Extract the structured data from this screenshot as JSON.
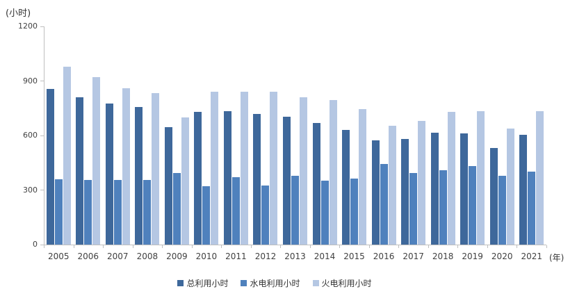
{
  "chart_data": {
    "type": "bar",
    "title": "",
    "ylabel": "(小时)",
    "xlabel": "(年)",
    "ylim": [
      0,
      1200
    ],
    "yticks": [
      0,
      300,
      600,
      900,
      1200
    ],
    "grid": false,
    "legend_position": "bottom",
    "axis_color": "#bfbfbf",
    "text_color": "#404040",
    "categories": [
      "2005",
      "2006",
      "2007",
      "2008",
      "2009",
      "2010",
      "2011",
      "2012",
      "2013",
      "2014",
      "2015",
      "2016",
      "2017",
      "2018",
      "2019",
      "2020",
      "2021"
    ],
    "series": [
      {
        "id": "total-hours",
        "name": "总利用小时",
        "color": "#3e689b",
        "values": [
          855,
          810,
          775,
          755,
          645,
          730,
          735,
          720,
          705,
          670,
          630,
          575,
          580,
          615,
          610,
          530,
          605
        ]
      },
      {
        "id": "hydro-hours",
        "name": "水电利用小时",
        "color": "#4f81bd",
        "values": [
          360,
          355,
          355,
          355,
          395,
          320,
          370,
          325,
          380,
          350,
          365,
          445,
          395,
          410,
          430,
          380,
          400
        ]
      },
      {
        "id": "thermal-hours",
        "name": "火电利用小时",
        "color": "#b5c7e3",
        "values": [
          980,
          920,
          860,
          835,
          700,
          840,
          840,
          840,
          810,
          795,
          745,
          655,
          680,
          730,
          735,
          640,
          735
        ]
      }
    ]
  }
}
